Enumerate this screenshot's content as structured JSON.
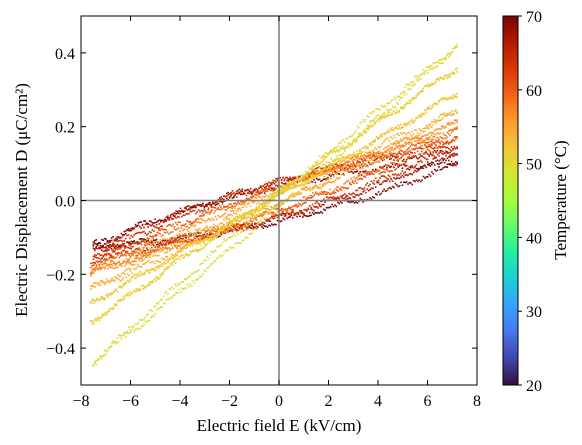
{
  "chart_data": {
    "type": "scatter",
    "xlabel": "Electric field E   (kV/cm)",
    "ylabel": "Electric Displacement D   (μC/cm²)",
    "xlim": [
      -8,
      8
    ],
    "ylim": [
      -0.5,
      0.5
    ],
    "xticks": [
      -8,
      -6,
      -4,
      -2,
      0,
      2,
      4,
      6,
      8
    ],
    "yticks": [
      -0.4,
      -0.2,
      0.0,
      0.2,
      0.4
    ],
    "xtick_labels": [
      "−8",
      "−6",
      "−4",
      "−2",
      "0",
      "2",
      "4",
      "6",
      "8"
    ],
    "ytick_labels": [
      "−0.4",
      "−0.2",
      "0.0",
      "0.2",
      "0.4"
    ],
    "reference_lines": {
      "x": 0,
      "y": 0,
      "color": "#808080"
    },
    "grid": false,
    "colorbar": {
      "label": "Temperature (°C)",
      "range": [
        20,
        70
      ],
      "ticks": [
        20,
        30,
        40,
        50,
        60,
        70
      ],
      "colormap": "turbo",
      "stops": [
        "#30123b",
        "#4145ab",
        "#4675ed",
        "#39a2fc",
        "#1bcfd4",
        "#24eca6",
        "#61fc6c",
        "#a4fc3b",
        "#d1e834",
        "#f3c63a",
        "#fe9b2d",
        "#f36315",
        "#d93806",
        "#b11901",
        "#7a0402"
      ]
    },
    "series": [
      {
        "temperature": 70,
        "e_min": -7.5,
        "e_max": 7.2,
        "d_at_e_min": -0.12,
        "d_at_e_max": 0.1,
        "d_at_zero": 0.03
      },
      {
        "temperature": 67,
        "e_min": -7.5,
        "e_max": 7.2,
        "d_at_e_min": -0.13,
        "d_at_e_max": 0.13,
        "d_at_zero": 0.03
      },
      {
        "temperature": 64,
        "e_min": -7.5,
        "e_max": 7.2,
        "d_at_e_min": -0.15,
        "d_at_e_max": 0.15,
        "d_at_zero": 0.03
      },
      {
        "temperature": 61,
        "e_min": -7.6,
        "e_max": 7.2,
        "d_at_e_min": -0.17,
        "d_at_e_max": 0.17,
        "d_at_zero": 0.02
      },
      {
        "temperature": 58,
        "e_min": -7.6,
        "e_max": 7.2,
        "d_at_e_min": -0.19,
        "d_at_e_max": 0.19,
        "d_at_zero": 0.02
      },
      {
        "temperature": 56,
        "e_min": -7.6,
        "e_max": 7.2,
        "d_at_e_min": -0.2,
        "d_at_e_max": 0.21,
        "d_at_zero": 0.01
      },
      {
        "temperature": 54,
        "e_min": -7.6,
        "e_max": 7.2,
        "d_at_e_min": -0.24,
        "d_at_e_max": 0.24,
        "d_at_zero": 0.01
      },
      {
        "temperature": 52,
        "e_min": -7.6,
        "e_max": 7.2,
        "d_at_e_min": -0.28,
        "d_at_e_max": 0.29,
        "d_at_zero": 0.0
      },
      {
        "temperature": 51,
        "e_min": -7.6,
        "e_max": 7.2,
        "d_at_e_min": -0.33,
        "d_at_e_max": 0.36,
        "d_at_zero": 0.0
      },
      {
        "temperature": 50,
        "e_min": -7.5,
        "e_max": 7.2,
        "d_at_e_min": -0.44,
        "d_at_e_max": 0.42,
        "d_at_zero": -0.01
      }
    ]
  }
}
